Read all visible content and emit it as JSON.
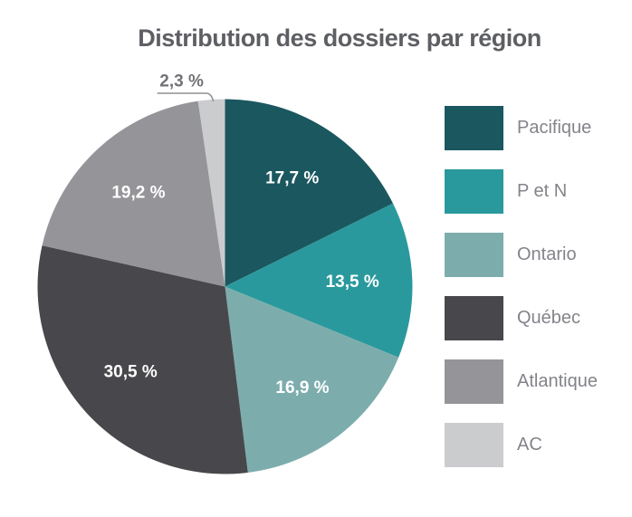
{
  "chart_data": {
    "type": "pie",
    "title": "Distribution des dossiers par région",
    "direction": "clockwise",
    "start_angle_deg": 0,
    "legend_position": "right",
    "value_format": "french decimal comma, percent",
    "slices": [
      {
        "label": "Pacifique",
        "value": 17.7,
        "display": "17,7 %",
        "color": "#1b575f",
        "label_placement": "inside"
      },
      {
        "label": "P et N",
        "value": 13.5,
        "display": "13,5 %",
        "color": "#2a999d",
        "label_placement": "inside"
      },
      {
        "label": "Ontario",
        "value": 16.9,
        "display": "16,9 %",
        "color": "#7cadac",
        "label_placement": "inside"
      },
      {
        "label": "Québec",
        "value": 30.5,
        "display": "30,5 %",
        "color": "#48474b",
        "label_placement": "inside"
      },
      {
        "label": "Atlantique",
        "value": 19.2,
        "display": "19,2 %",
        "color": "#949499",
        "label_placement": "inside"
      },
      {
        "label": "AC",
        "value": 2.3,
        "display": "2,3 %",
        "color": "#cbccce",
        "label_placement": "outside"
      }
    ],
    "colors": {
      "title_text": "#5e5f64",
      "legend_text": "#83848a",
      "inside_label_text": "#ffffff",
      "callout_text": "#717277",
      "callout_line": "#909196",
      "background": "#ffffff"
    }
  }
}
